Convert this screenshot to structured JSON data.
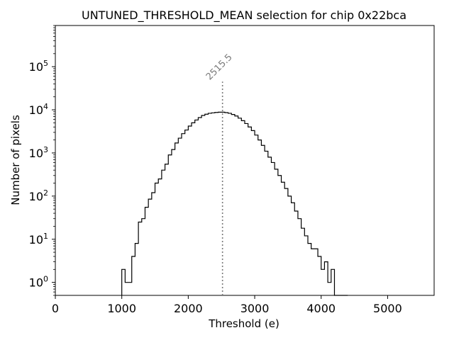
{
  "chart_data": {
    "type": "histogram",
    "title": "UNTUNED_THRESHOLD_MEAN selection for chip 0x22bca",
    "xlabel": "Threshold (e)",
    "ylabel": "Number of pixels",
    "xlim": [
      0,
      5700
    ],
    "ylim": [
      0.5,
      900000
    ],
    "yscale": "log",
    "xticks": [
      0,
      1000,
      2000,
      3000,
      4000,
      5000
    ],
    "xtick_labels": [
      "0",
      "1000",
      "2000",
      "3000",
      "4000",
      "5000"
    ],
    "yticks": [
      1,
      10,
      100,
      1000,
      10000,
      100000
    ],
    "ytick_labels": [
      "10^0",
      "10^1",
      "10^2",
      "10^3",
      "10^4",
      "10^5"
    ],
    "bin_width": 50,
    "bins_start": [
      1000,
      1050,
      1100,
      1150,
      1200,
      1250,
      1300,
      1350,
      1400,
      1450,
      1500,
      1550,
      1600,
      1650,
      1700,
      1750,
      1800,
      1850,
      1900,
      1950,
      2000,
      2050,
      2100,
      2150,
      2200,
      2250,
      2300,
      2350,
      2400,
      2450,
      2500,
      2550,
      2600,
      2650,
      2700,
      2750,
      2800,
      2850,
      2900,
      2950,
      3000,
      3050,
      3100,
      3150,
      3200,
      3250,
      3300,
      3350,
      3400,
      3450,
      3500,
      3550,
      3600,
      3650,
      3700,
      3750,
      3800,
      3850,
      3900,
      3950,
      4000,
      4050,
      4100,
      4150,
      4200,
      4250,
      4300,
      4350
    ],
    "counts": [
      2,
      1,
      1,
      4,
      8,
      25,
      30,
      55,
      85,
      120,
      200,
      250,
      400,
      550,
      900,
      1200,
      1700,
      2200,
      2800,
      3400,
      4200,
      5000,
      5800,
      6600,
      7400,
      7900,
      8300,
      8500,
      8700,
      8800,
      8800,
      8600,
      8300,
      7800,
      7200,
      6400,
      5600,
      4800,
      4000,
      3300,
      2600,
      2000,
      1500,
      1100,
      800,
      600,
      420,
      300,
      210,
      150,
      100,
      70,
      45,
      30,
      18,
      12,
      8,
      6,
      6,
      4,
      2,
      3,
      1,
      2,
      0,
      0,
      0,
      0
    ],
    "vline": {
      "x": 2515.5,
      "label": "2515.5"
    },
    "grid": false,
    "line_color": "#000000",
    "vline_color": "#7a7a7a"
  }
}
